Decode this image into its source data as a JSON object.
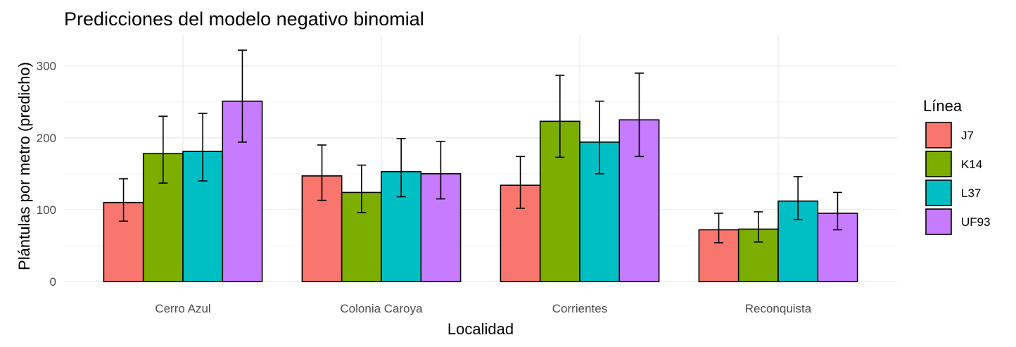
{
  "chart_data": {
    "type": "bar",
    "title": "Predicciones del modelo negativo binomial",
    "xlabel": "Localidad",
    "ylabel": "Plántulas por metro (predicho)",
    "ylim": [
      0,
      335
    ],
    "yticks": [
      0,
      100,
      200,
      300
    ],
    "grid": true,
    "legend": {
      "title": "Línea",
      "position": "right"
    },
    "categories": [
      "Cerro Azul",
      "Colonia Caroya",
      "Corrientes",
      "Reconquista"
    ],
    "series": [
      {
        "name": "J7",
        "color": "#F8766D",
        "values": [
          110,
          147,
          134,
          72
        ],
        "lower": [
          84,
          113,
          102,
          54
        ],
        "upper": [
          143,
          190,
          174,
          95
        ]
      },
      {
        "name": "K14",
        "color": "#7CAE00",
        "values": [
          178,
          124,
          223,
          73
        ],
        "lower": [
          137,
          96,
          173,
          55
        ],
        "upper": [
          230,
          162,
          287,
          97
        ]
      },
      {
        "name": "L37",
        "color": "#00BFC4",
        "values": [
          181,
          153,
          194,
          112
        ],
        "lower": [
          140,
          118,
          150,
          86
        ],
        "upper": [
          234,
          199,
          251,
          146
        ]
      },
      {
        "name": "UF93",
        "color": "#C77CFF",
        "values": [
          251,
          150,
          225,
          95
        ],
        "lower": [
          194,
          115,
          174,
          72
        ],
        "upper": [
          322,
          195,
          290,
          124
        ]
      }
    ]
  }
}
